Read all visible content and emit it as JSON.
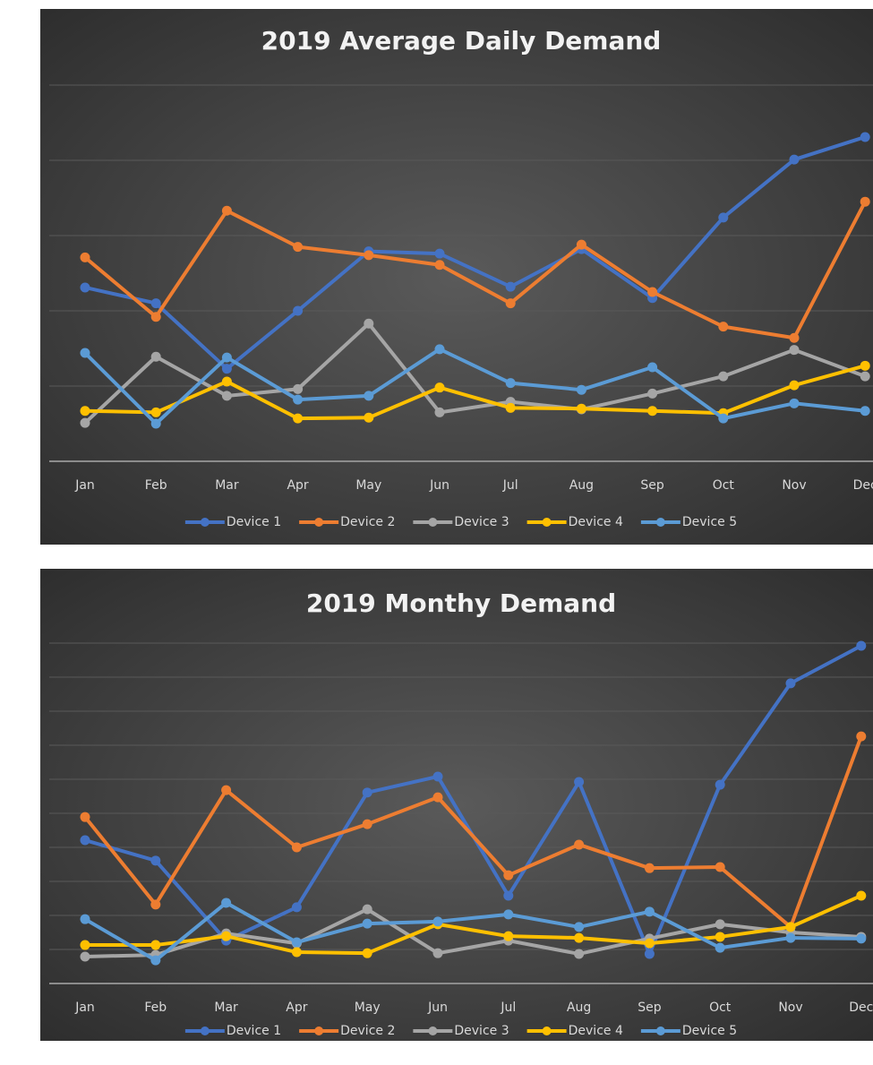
{
  "chart_data": [
    {
      "type": "line",
      "title": "2019 Average Daily Demand",
      "categories": [
        "Jan",
        "Feb",
        "Mar",
        "Apr",
        "May",
        "Jun",
        "Jul",
        "Aug",
        "Sep",
        "Oct",
        "Nov",
        "Dec"
      ],
      "ylim": [
        0,
        5
      ],
      "yticks": [
        0,
        1,
        2,
        3,
        4,
        5
      ],
      "ytick_labels": false,
      "grid": true,
      "legend": "bottom",
      "series": [
        {
          "name": "Device 1",
          "color": "#4472c4",
          "values": [
            2.31,
            2.1,
            1.23,
            2.0,
            2.79,
            2.76,
            2.32,
            2.82,
            2.17,
            3.24,
            4.01,
            4.31
          ]
        },
        {
          "name": "Device 2",
          "color": "#ed7d31",
          "values": [
            2.71,
            1.92,
            3.33,
            2.85,
            2.74,
            2.61,
            2.1,
            2.88,
            2.25,
            1.79,
            1.64,
            3.45
          ]
        },
        {
          "name": "Device 3",
          "color": "#a5a5a5",
          "values": [
            0.51,
            1.39,
            0.87,
            0.96,
            1.83,
            0.65,
            0.79,
            0.69,
            0.9,
            1.13,
            1.48,
            1.13
          ]
        },
        {
          "name": "Device 4",
          "color": "#ffc000",
          "values": [
            0.67,
            0.65,
            1.06,
            0.57,
            0.58,
            0.98,
            0.71,
            0.7,
            0.67,
            0.64,
            1.01,
            1.27
          ]
        },
        {
          "name": "Device 5",
          "color": "#5b9bd5",
          "values": [
            1.44,
            0.5,
            1.38,
            0.82,
            0.87,
            1.49,
            1.04,
            0.95,
            1.25,
            0.57,
            0.77,
            0.67
          ]
        }
      ]
    },
    {
      "type": "line",
      "title": "2019 Monthy Demand",
      "categories": [
        "Jan",
        "Feb",
        "Mar",
        "Apr",
        "May",
        "Jun",
        "Jul",
        "Aug",
        "Sep",
        "Oct",
        "Nov",
        "Dec"
      ],
      "ylim": [
        0,
        10
      ],
      "yticks": [
        0,
        1,
        2,
        3,
        4,
        5,
        6,
        7,
        8,
        9,
        10
      ],
      "ytick_labels": false,
      "grid": true,
      "legend": "bottom",
      "series": [
        {
          "name": "Device 1",
          "color": "#4472c4",
          "values": [
            4.21,
            3.61,
            1.26,
            2.24,
            5.61,
            6.08,
            2.58,
            5.92,
            0.87,
            5.84,
            8.82,
            9.92
          ]
        },
        {
          "name": "Device 2",
          "color": "#ed7d31",
          "values": [
            4.89,
            2.32,
            5.68,
            4.0,
            4.68,
            5.47,
            3.18,
            4.08,
            3.39,
            3.42,
            1.66,
            7.26
          ]
        },
        {
          "name": "Device 3",
          "color": "#a5a5a5",
          "values": [
            0.79,
            0.84,
            1.47,
            1.18,
            2.18,
            0.89,
            1.26,
            0.87,
            1.32,
            1.74,
            1.5,
            1.37
          ]
        },
        {
          "name": "Device 4",
          "color": "#ffc000",
          "values": [
            1.13,
            1.13,
            1.39,
            0.92,
            0.89,
            1.74,
            1.39,
            1.34,
            1.18,
            1.37,
            1.66,
            2.58
          ]
        },
        {
          "name": "Device 5",
          "color": "#5b9bd5",
          "values": [
            1.89,
            0.68,
            2.37,
            1.21,
            1.76,
            1.82,
            2.03,
            1.66,
            2.11,
            1.05,
            1.34,
            1.32
          ]
        }
      ]
    }
  ]
}
